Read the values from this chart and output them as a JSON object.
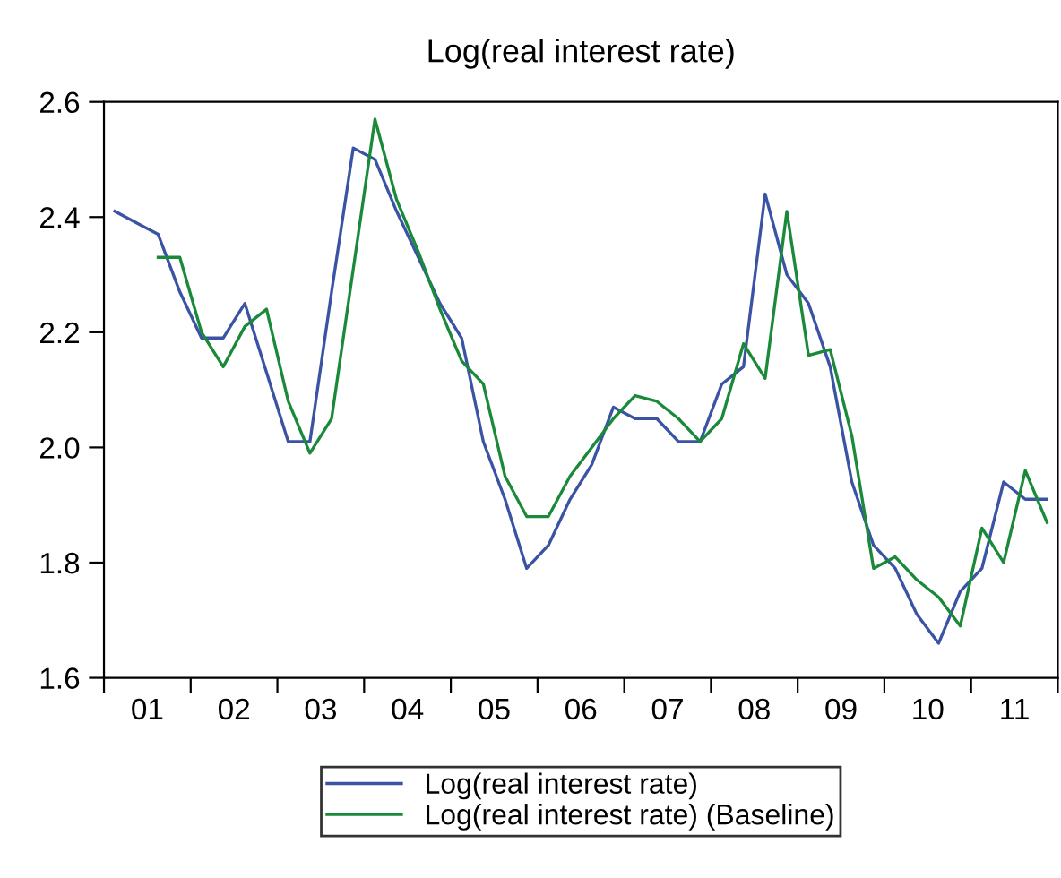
{
  "chart_data": {
    "type": "line",
    "title": "Log(real interest rate)",
    "x": [
      1.125,
      1.375,
      1.625,
      1.875,
      2.125,
      2.375,
      2.625,
      2.875,
      3.125,
      3.375,
      3.625,
      3.875,
      4.125,
      4.375,
      4.625,
      4.875,
      5.125,
      5.375,
      5.625,
      5.875,
      6.125,
      6.375,
      6.625,
      6.875,
      7.125,
      7.375,
      7.625,
      7.875,
      8.125,
      8.375,
      8.625,
      8.875,
      9.125,
      9.375,
      9.625,
      9.875,
      10.125,
      10.375,
      10.625,
      10.875,
      11.125,
      11.375,
      11.625,
      11.875
    ],
    "series": [
      {
        "name": "Log(real interest rate)",
        "color": "#3a53a4",
        "values": [
          2.41,
          2.39,
          2.37,
          2.27,
          2.19,
          2.19,
          2.25,
          2.13,
          2.01,
          2.01,
          2.27,
          2.52,
          2.5,
          2.41,
          2.33,
          2.25,
          2.19,
          2.01,
          1.91,
          1.79,
          1.83,
          1.91,
          1.97,
          2.07,
          2.05,
          2.05,
          2.01,
          2.01,
          2.11,
          2.14,
          2.44,
          2.3,
          2.25,
          2.14,
          1.94,
          1.83,
          1.79,
          1.71,
          1.66,
          1.75,
          1.79,
          1.94,
          1.91,
          1.91
        ]
      },
      {
        "name": "Log(real interest rate) (Baseline)",
        "color": "#1a8a3a",
        "values": [
          null,
          null,
          2.33,
          2.33,
          2.2,
          2.14,
          2.21,
          2.24,
          2.08,
          1.99,
          2.05,
          2.31,
          2.57,
          2.43,
          2.34,
          2.24,
          2.15,
          2.11,
          1.95,
          1.88,
          1.88,
          1.95,
          2.0,
          2.05,
          2.09,
          2.08,
          2.05,
          2.01,
          2.05,
          2.18,
          2.12,
          2.41,
          2.16,
          2.17,
          2.02,
          1.79,
          1.81,
          1.77,
          1.74,
          1.69,
          1.86,
          1.8,
          1.96,
          1.87
        ]
      }
    ],
    "xlim": [
      1,
      12
    ],
    "xticks": [
      {
        "value": 1,
        "label": null
      },
      {
        "value": 2,
        "label": null
      },
      {
        "value": 3,
        "label": null
      },
      {
        "value": 4,
        "label": null
      },
      {
        "value": 5,
        "label": null
      },
      {
        "value": 6,
        "label": null
      },
      {
        "value": 7,
        "label": null
      },
      {
        "value": 8,
        "label": null
      },
      {
        "value": 9,
        "label": null
      },
      {
        "value": 10,
        "label": null
      },
      {
        "value": 11,
        "label": null
      },
      {
        "value": 12,
        "label": null
      },
      {
        "value": 1.5,
        "label": "01"
      },
      {
        "value": 2.5,
        "label": "02"
      },
      {
        "value": 3.5,
        "label": "03"
      },
      {
        "value": 4.5,
        "label": "04"
      },
      {
        "value": 5.5,
        "label": "05"
      },
      {
        "value": 6.5,
        "label": "06"
      },
      {
        "value": 7.5,
        "label": "07"
      },
      {
        "value": 8.5,
        "label": "08"
      },
      {
        "value": 9.5,
        "label": "09"
      },
      {
        "value": 10.5,
        "label": "10"
      },
      {
        "value": 11.5,
        "label": "11"
      }
    ],
    "ylim": [
      1.6,
      2.6
    ],
    "yticks": [
      1.6,
      1.8,
      {
        "value": 2.0,
        "label": "2.0"
      },
      2.2,
      2.4,
      2.6
    ],
    "legend": "bottom",
    "grid": false
  }
}
